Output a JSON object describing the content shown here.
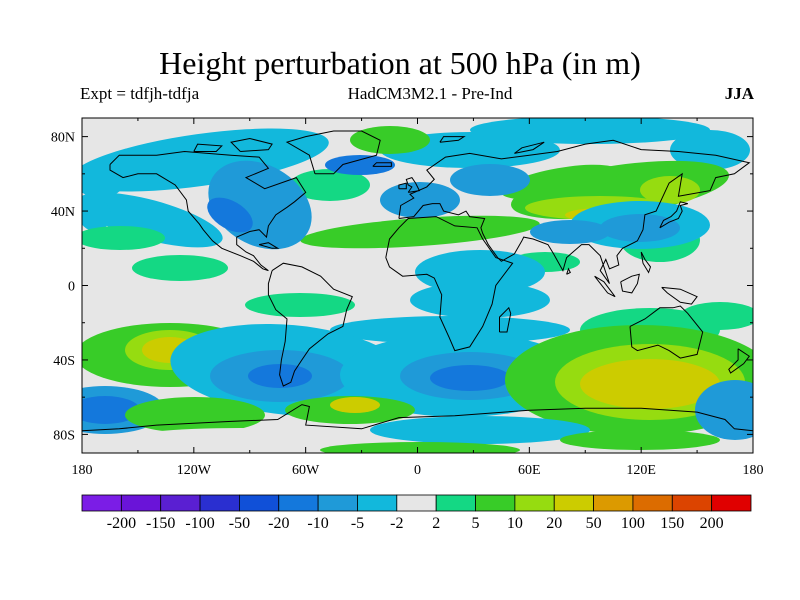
{
  "title": "Height perturbation at 500 hPa (in m)",
  "subtitle_left": "Expt = tdfjh-tdfja",
  "subtitle_center": "HadCM3M2.1 - Pre-Ind",
  "subtitle_right": "JJA",
  "map": {
    "lat_ticks": [
      {
        "value": 80,
        "label": "80N"
      },
      {
        "value": 40,
        "label": "40N"
      },
      {
        "value": 0,
        "label": "0"
      },
      {
        "value": -40,
        "label": "40S"
      },
      {
        "value": -80,
        "label": "80S"
      }
    ],
    "lon_ticks": [
      {
        "value": -180,
        "label": "180"
      },
      {
        "value": -120,
        "label": "120W"
      },
      {
        "value": -60,
        "label": "60W"
      },
      {
        "value": 0,
        "label": "0"
      },
      {
        "value": 60,
        "label": "60E"
      },
      {
        "value": 120,
        "label": "120E"
      },
      {
        "value": 180,
        "label": "180"
      }
    ],
    "lat_range": [
      -90,
      90
    ],
    "lon_range": [
      -180,
      180
    ],
    "background_color": "#e6e6e6"
  },
  "colorbar": {
    "colors": [
      "#7b1de6",
      "#6a14d8",
      "#5a1fd2",
      "#2a2fd0",
      "#1050d8",
      "#1478dc",
      "#1f9ad8",
      "#12b8dc",
      "#e6e6e6",
      "#14d884",
      "#38cc28",
      "#96dc10",
      "#cccc00",
      "#dc9a00",
      "#dc6c00",
      "#dc4400",
      "#e00000"
    ],
    "labels": [
      "-200",
      "-150",
      "-100",
      "-50",
      "-20",
      "-10",
      "-5",
      "-2",
      "2",
      "5",
      "10",
      "20",
      "50",
      "100",
      "150",
      "200"
    ]
  }
}
